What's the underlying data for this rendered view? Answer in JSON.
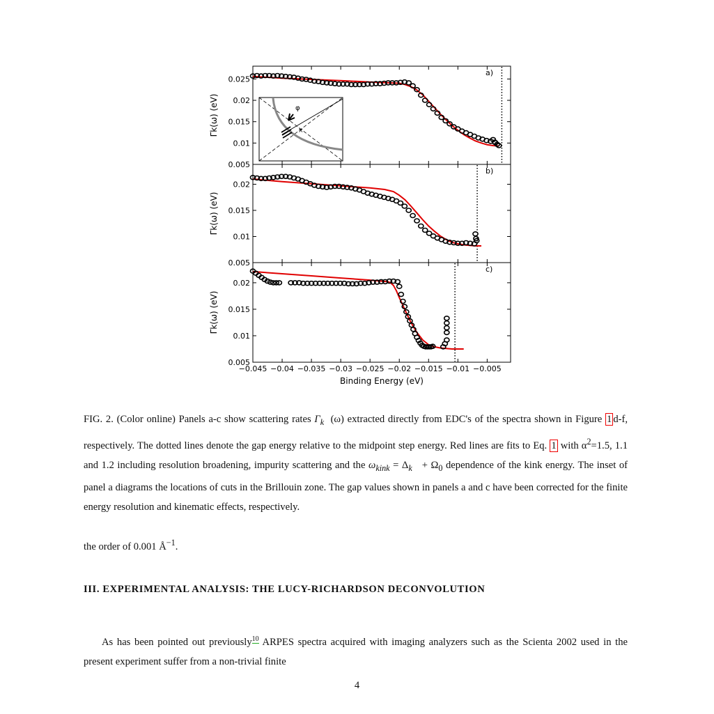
{
  "chart_data": [
    {
      "type": "scatter",
      "panel_label": "a)",
      "xlim": [
        -0.045,
        -0.001
      ],
      "ylim": [
        0.005,
        0.028
      ],
      "yticks": [
        "0.005",
        "0.01",
        "0.015",
        "0.02",
        "0.025"
      ],
      "ylabel": "Γk(ω) (eV)",
      "gap_line_x": -0.0025,
      "series": [
        {
          "kind": "points",
          "x": [
            -0.045,
            -0.0443,
            -0.0436,
            -0.0429,
            -0.0422,
            -0.0415,
            -0.0408,
            -0.0401,
            -0.0394,
            -0.0387,
            -0.038,
            -0.0373,
            -0.0366,
            -0.0359,
            -0.0352,
            -0.0345,
            -0.0338,
            -0.0331,
            -0.0324,
            -0.0317,
            -0.031,
            -0.0303,
            -0.0296,
            -0.0289,
            -0.0282,
            -0.0275,
            -0.0268,
            -0.0261,
            -0.0254,
            -0.0247,
            -0.024,
            -0.0233,
            -0.0226,
            -0.0219,
            -0.0212,
            -0.0205,
            -0.0198,
            -0.0191,
            -0.0184,
            -0.0177,
            -0.017,
            -0.0163,
            -0.0156,
            -0.0149,
            -0.0142,
            -0.0135,
            -0.0128,
            -0.0121,
            -0.0114,
            -0.0107,
            -0.01,
            -0.0093,
            -0.0086,
            -0.0079,
            -0.0072,
            -0.0065,
            -0.0058,
            -0.0051,
            -0.0044,
            -0.0037,
            -0.004,
            -0.0036,
            -0.0033,
            -0.003
          ],
          "y": [
            0.0257,
            0.0258,
            0.0257,
            0.0258,
            0.0258,
            0.0257,
            0.0258,
            0.0257,
            0.0256,
            0.0255,
            0.0254,
            0.0252,
            0.025,
            0.0249,
            0.0247,
            0.0245,
            0.0244,
            0.0242,
            0.0241,
            0.024,
            0.0239,
            0.0238,
            0.0238,
            0.0238,
            0.0237,
            0.0237,
            0.0237,
            0.0237,
            0.0238,
            0.0238,
            0.0239,
            0.0239,
            0.024,
            0.0241,
            0.0241,
            0.0241,
            0.0242,
            0.0243,
            0.0241,
            0.0234,
            0.0225,
            0.0212,
            0.02,
            0.019,
            0.018,
            0.017,
            0.016,
            0.0152,
            0.0145,
            0.0138,
            0.0133,
            0.0128,
            0.0124,
            0.012,
            0.0116,
            0.0112,
            0.0109,
            0.0106,
            0.0104,
            0.0102,
            0.0108,
            0.0101,
            0.0097,
            0.0094
          ]
        },
        {
          "kind": "fit",
          "x": [
            -0.045,
            -0.04,
            -0.035,
            -0.03,
            -0.025,
            -0.02,
            -0.019,
            -0.018,
            -0.017,
            -0.016,
            -0.015,
            -0.014,
            -0.013,
            -0.012,
            -0.011,
            -0.01,
            -0.009,
            -0.008,
            -0.007,
            -0.006,
            -0.005,
            -0.004,
            -0.003
          ],
          "y": [
            0.0256,
            0.0252,
            0.0249,
            0.0246,
            0.0243,
            0.024,
            0.0237,
            0.0232,
            0.0224,
            0.0213,
            0.0198,
            0.0183,
            0.0168,
            0.0154,
            0.0141,
            0.013,
            0.012,
            0.0112,
            0.0105,
            0.01,
            0.0096,
            0.0094,
            0.0093
          ]
        }
      ]
    },
    {
      "type": "scatter",
      "panel_label": "b)",
      "xlim": [
        -0.045,
        -0.001
      ],
      "ylim": [
        0.005,
        0.0238
      ],
      "yticks": [
        "0.005",
        "0.01",
        "0.015",
        "0.02"
      ],
      "ylabel": "Γk(ω) (eV)",
      "gap_line_x": -0.0067,
      "series": [
        {
          "kind": "points",
          "x": [
            -0.045,
            -0.0443,
            -0.0436,
            -0.0429,
            -0.0422,
            -0.0415,
            -0.0408,
            -0.0401,
            -0.0394,
            -0.0387,
            -0.038,
            -0.0373,
            -0.0366,
            -0.0359,
            -0.0352,
            -0.0345,
            -0.0338,
            -0.0331,
            -0.0324,
            -0.0317,
            -0.031,
            -0.0303,
            -0.0296,
            -0.0289,
            -0.0282,
            -0.0275,
            -0.0268,
            -0.0261,
            -0.0254,
            -0.0247,
            -0.024,
            -0.0233,
            -0.0226,
            -0.0219,
            -0.0212,
            -0.0205,
            -0.0198,
            -0.0191,
            -0.0184,
            -0.0177,
            -0.017,
            -0.0163,
            -0.0156,
            -0.0149,
            -0.0142,
            -0.0135,
            -0.0128,
            -0.0121,
            -0.0114,
            -0.0107,
            -0.01,
            -0.0093,
            -0.0086,
            -0.0079,
            -0.0072,
            -0.007,
            -0.0069,
            -0.0068
          ],
          "y": [
            0.0213,
            0.0212,
            0.0211,
            0.0211,
            0.0212,
            0.0213,
            0.0214,
            0.0215,
            0.0215,
            0.0214,
            0.0212,
            0.021,
            0.0207,
            0.0204,
            0.0201,
            0.0198,
            0.0196,
            0.0195,
            0.0194,
            0.0195,
            0.0196,
            0.0196,
            0.0195,
            0.0194,
            0.0193,
            0.0191,
            0.0189,
            0.0186,
            0.0183,
            0.0181,
            0.0179,
            0.0177,
            0.0175,
            0.0173,
            0.0171,
            0.0168,
            0.0164,
            0.0158,
            0.015,
            0.014,
            0.013,
            0.012,
            0.0112,
            0.0106,
            0.0101,
            0.0097,
            0.0094,
            0.0091,
            0.0089,
            0.0088,
            0.0087,
            0.0087,
            0.0088,
            0.0087,
            0.0086,
            0.0105,
            0.0096,
            0.0092
          ]
        },
        {
          "kind": "fit",
          "x": [
            -0.045,
            -0.04,
            -0.035,
            -0.03,
            -0.025,
            -0.0225,
            -0.021,
            -0.02,
            -0.019,
            -0.018,
            -0.017,
            -0.016,
            -0.015,
            -0.014,
            -0.013,
            -0.012,
            -0.011,
            -0.01,
            -0.009,
            -0.008,
            -0.007,
            -0.006
          ],
          "y": [
            0.021,
            0.0205,
            0.0201,
            0.0197,
            0.0193,
            0.019,
            0.0186,
            0.0179,
            0.017,
            0.0158,
            0.0145,
            0.0132,
            0.012,
            0.011,
            0.0101,
            0.0094,
            0.0089,
            0.0086,
            0.0084,
            0.0083,
            0.0082,
            0.0082
          ]
        }
      ]
    },
    {
      "type": "scatter",
      "panel_label": "c)",
      "xlim": [
        -0.045,
        -0.001
      ],
      "ylim": [
        0.005,
        0.0238
      ],
      "yticks": [
        "0.005",
        "0.01",
        "0.015",
        "0.02"
      ],
      "ylabel": "Γk(ω) (eV)",
      "xlabel": "Binding Energy (eV)",
      "xticks": [
        "−0.045",
        "−0.04",
        "−0.035",
        "−0.03",
        "−0.025",
        "−0.02",
        "−0.015",
        "−0.01",
        "−0.005"
      ],
      "xtick_values": [
        -0.045,
        -0.04,
        -0.035,
        -0.03,
        -0.025,
        -0.02,
        -0.015,
        -0.01,
        -0.005
      ],
      "gap_line_x": -0.0105,
      "series": [
        {
          "kind": "points",
          "x": [
            -0.045,
            -0.0445,
            -0.044,
            -0.0435,
            -0.043,
            -0.0425,
            -0.042,
            -0.0415,
            -0.041,
            -0.0405,
            -0.0385,
            -0.0378,
            -0.0371,
            -0.0364,
            -0.0357,
            -0.035,
            -0.0343,
            -0.0336,
            -0.0329,
            -0.0322,
            -0.0315,
            -0.0308,
            -0.0301,
            -0.0294,
            -0.0287,
            -0.028,
            -0.0273,
            -0.0266,
            -0.0259,
            -0.0252,
            -0.0245,
            -0.0238,
            -0.0231,
            -0.0224,
            -0.0217,
            -0.021,
            -0.0203,
            -0.02,
            -0.0197,
            -0.0194,
            -0.0191,
            -0.0188,
            -0.0185,
            -0.0182,
            -0.0179,
            -0.0176,
            -0.0173,
            -0.017,
            -0.0167,
            -0.0164,
            -0.0161,
            -0.0158,
            -0.0155,
            -0.0152,
            -0.0149,
            -0.0146,
            -0.0143,
            -0.0125,
            -0.0122,
            -0.0119,
            -0.0119,
            -0.0119,
            -0.0119,
            -0.0119
          ],
          "y": [
            0.0222,
            0.0218,
            0.0214,
            0.021,
            0.0206,
            0.0203,
            0.0201,
            0.02,
            0.02,
            0.02,
            0.02,
            0.02,
            0.02,
            0.0199,
            0.0199,
            0.0199,
            0.0199,
            0.0199,
            0.0199,
            0.0199,
            0.0199,
            0.0199,
            0.0199,
            0.0199,
            0.0198,
            0.0198,
            0.0198,
            0.0199,
            0.0199,
            0.02,
            0.0201,
            0.0201,
            0.0202,
            0.0202,
            0.0203,
            0.0203,
            0.0202,
            0.0193,
            0.0178,
            0.0165,
            0.0155,
            0.0145,
            0.0136,
            0.0128,
            0.012,
            0.0112,
            0.0104,
            0.0097,
            0.0091,
            0.0086,
            0.0082,
            0.008,
            0.0079,
            0.0079,
            0.0079,
            0.0079,
            0.008,
            0.0079,
            0.0085,
            0.0092,
            0.0106,
            0.0115,
            0.0124,
            0.0133
          ]
        },
        {
          "kind": "fit",
          "x": [
            -0.045,
            -0.04,
            -0.035,
            -0.03,
            -0.025,
            -0.022,
            -0.0215,
            -0.021,
            -0.0205,
            -0.02,
            -0.019,
            -0.018,
            -0.017,
            -0.016,
            -0.015,
            -0.014,
            -0.013,
            -0.012,
            -0.011,
            -0.01,
            -0.009
          ],
          "y": [
            0.0221,
            0.0217,
            0.0213,
            0.0209,
            0.0205,
            0.0202,
            0.02,
            0.0195,
            0.0185,
            0.0172,
            0.0148,
            0.0125,
            0.0106,
            0.0092,
            0.0083,
            0.0079,
            0.0077,
            0.0076,
            0.0075,
            0.0075,
            0.0075
          ]
        }
      ]
    }
  ],
  "inset": {
    "label": "φ"
  },
  "caption": {
    "p1": "FIG. 2.  (Color online) Panels a-c show scattering rates ",
    "gamma": "Γ",
    "gamma_sub": "k⃗",
    "p2": "(ω) extracted directly from EDC's of the spectra shown in Figure ",
    "ref_fig": "1",
    "p3": "d-f, respectively.  The dotted lines denote the gap energy relative to the midpoint step energy.  Red lines are fits to Eq. ",
    "ref_eq": "1",
    "p4": " with α",
    "alpha_sup": "2",
    "p5": "=1.5, 1.1 and 1.2 including resolution broadening, impurity scattering and the ",
    "omega_kink": "ω",
    "kink_sub": "kink",
    "p6": " = Δ",
    "delta_sub": "k⃗",
    "p7": " + Ω",
    "omega_sub": "0",
    "p8": " dependence of the kink energy.  The inset of panel a diagrams the locations of cuts in the Brillouin zone.  The gap values shown in panels a and c have been corrected for the finite energy resolution and kinematic effects, respectively."
  },
  "continuation": {
    "text": "the order of 0.001 Å",
    "sup": "−1",
    "end": "."
  },
  "section": {
    "heading": "III.   EXPERIMENTAL ANALYSIS: THE LUCY-RICHARDSON DECONVOLUTION"
  },
  "paragraph": {
    "p1": "As has been pointed out previously",
    "ref": "10",
    "p2": " ARPES spectra acquired with imaging analyzers such as the Scienta 2002 used in the present experiment suffer from a non-trivial finite"
  },
  "page_number": "4",
  "colors": {
    "fit": "#e00000",
    "points": "#000000",
    "inset_arc": "#888888"
  }
}
